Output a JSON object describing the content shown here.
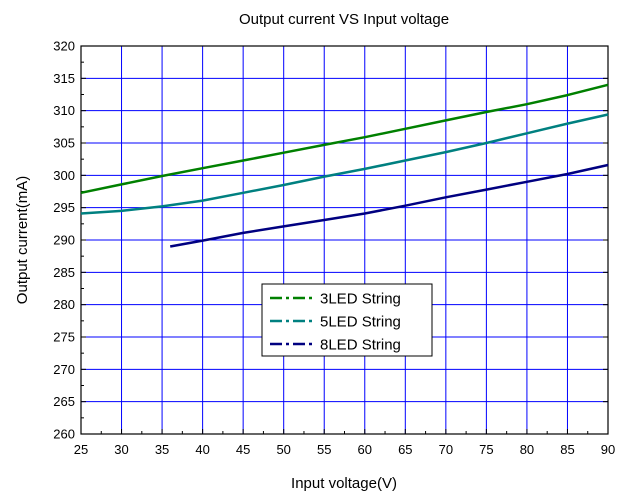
{
  "chart_data": {
    "type": "line",
    "title": "Output current VS Input voltage",
    "xlabel": "Input voltage(V)",
    "ylabel": "Output current(mA)",
    "xlim": [
      25,
      90
    ],
    "ylim": [
      260,
      320
    ],
    "xticks": [
      25,
      30,
      35,
      40,
      45,
      50,
      55,
      60,
      65,
      70,
      75,
      80,
      85,
      90
    ],
    "yticks": [
      260,
      265,
      270,
      275,
      280,
      285,
      290,
      295,
      300,
      305,
      310,
      315,
      320
    ],
    "grid": true,
    "grid_color": "#0000ff",
    "legend_position": "center-bottom",
    "series": [
      {
        "name": "3LED String",
        "color": "#008000",
        "x": [
          25,
          30,
          35,
          40,
          45,
          50,
          55,
          60,
          65,
          70,
          75,
          80,
          85,
          90
        ],
        "y": [
          297.3,
          298.6,
          299.9,
          301.1,
          302.3,
          303.5,
          304.7,
          305.9,
          307.2,
          308.5,
          309.8,
          311.0,
          312.4,
          314.0
        ]
      },
      {
        "name": "5LED String",
        "color": "#008080",
        "x": [
          25,
          30,
          35,
          40,
          45,
          50,
          55,
          60,
          65,
          70,
          75,
          80,
          85,
          90
        ],
        "y": [
          294.1,
          294.5,
          295.2,
          296.1,
          297.3,
          298.5,
          299.8,
          301.0,
          302.3,
          303.6,
          305.0,
          306.5,
          308.0,
          309.4
        ]
      },
      {
        "name": "8LED String",
        "color": "#000080",
        "x": [
          36,
          40,
          45,
          50,
          55,
          60,
          65,
          70,
          75,
          80,
          85,
          90
        ],
        "y": [
          289.0,
          289.9,
          291.1,
          292.1,
          293.1,
          294.1,
          295.3,
          296.6,
          297.8,
          299.0,
          300.2,
          301.6
        ]
      }
    ]
  }
}
